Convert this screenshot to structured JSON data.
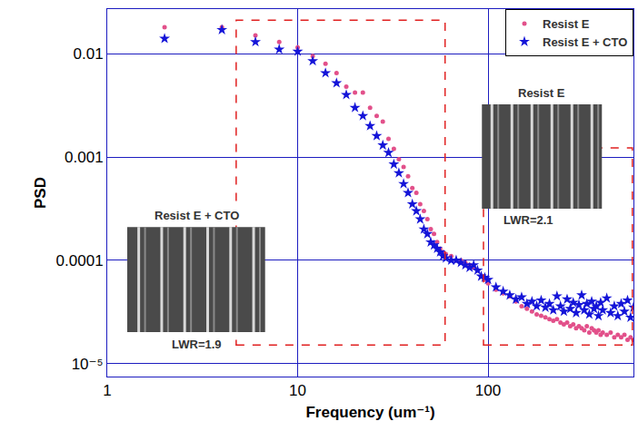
{
  "chart_data": {
    "type": "scatter",
    "x_label": "Frequency (um⁻¹)",
    "y_label": "PSD",
    "log": true,
    "grid": true,
    "legend": "upper right",
    "xlim": [
      1,
      580
    ],
    "ylim": [
      7.5e-06,
      0.027
    ],
    "xticks": [
      1,
      10,
      100
    ],
    "yticks": [
      {
        "value": 1e-05,
        "label": "10⁻⁵"
      },
      0.0001,
      0.001,
      0.01
    ],
    "x": [
      2,
      4,
      6,
      8,
      10,
      12,
      14,
      16,
      18,
      20,
      22,
      24,
      26,
      28,
      30,
      32,
      34,
      36,
      38,
      40,
      42,
      44,
      46,
      48,
      50,
      52,
      54,
      56,
      58,
      60,
      64,
      68,
      72,
      76,
      80,
      84,
      88,
      92,
      96,
      100,
      110,
      120,
      130,
      140,
      150,
      160,
      170,
      180,
      190,
      200,
      210,
      220,
      230,
      240,
      250,
      260,
      270,
      280,
      290,
      300,
      310,
      320,
      330,
      340,
      350,
      360,
      370,
      380,
      390,
      400,
      420,
      440,
      460,
      480,
      500,
      520,
      540,
      560,
      580
    ],
    "series": [
      {
        "name": "Resist E",
        "color": "#e2508a",
        "marker": "circle",
        "values": [
          0.018,
          0.018,
          0.015,
          0.013,
          0.0115,
          0.0095,
          0.008,
          0.0065,
          0.0048,
          0.0042,
          0.0042,
          0.003,
          0.0025,
          0.0022,
          0.0015,
          0.0012,
          0.00095,
          0.0008,
          0.00065,
          0.0005,
          0.00045,
          0.00035,
          0.0003,
          0.00025,
          0.0002,
          0.00018,
          0.00015,
          0.00013,
          0.00012,
          0.000115,
          0.00011,
          0.0001,
          0.0001,
          9.5e-05,
          9e-05,
          8.5e-05,
          8e-05,
          7e-05,
          6.5e-05,
          6e-05,
          5.2e-05,
          4.8e-05,
          4.5e-05,
          4e-05,
          3.6e-05,
          3.4e-05,
          3.2e-05,
          3e-05,
          2.9e-05,
          2.8e-05,
          2.7e-05,
          2.6e-05,
          2.7e-05,
          2.5e-05,
          2.4e-05,
          2.5e-05,
          2.3e-05,
          2.4e-05,
          2.2e-05,
          2.3e-05,
          2.2e-05,
          2.1e-05,
          2.3e-05,
          2e-05,
          2.2e-05,
          2.1e-05,
          2e-05,
          2.1e-05,
          1.9e-05,
          2e-05,
          1.9e-05,
          2e-05,
          1.8e-05,
          1.9e-05,
          1.8e-05,
          1.9e-05,
          1.7e-05,
          1.8e-05,
          1.7e-05
        ]
      },
      {
        "name": "Resist E + CTO",
        "color": "#1414d8",
        "marker": "star",
        "values": [
          0.014,
          0.017,
          0.013,
          0.011,
          0.0105,
          0.0085,
          0.0065,
          0.0052,
          0.004,
          0.003,
          0.0025,
          0.002,
          0.0016,
          0.0013,
          0.0011,
          0.00085,
          0.0007,
          0.00055,
          0.00045,
          0.00035,
          0.0003,
          0.00025,
          0.0002,
          0.00018,
          0.00015,
          0.00014,
          0.00013,
          0.00012,
          0.00011,
          0.000105,
          0.0001,
          0.0001,
          9.5e-05,
          9e-05,
          8.5e-05,
          9e-05,
          8e-05,
          7e-05,
          6.8e-05,
          6.5e-05,
          5.5e-05,
          5e-05,
          4.6e-05,
          4.2e-05,
          4.4e-05,
          3.8e-05,
          4e-05,
          3.6e-05,
          4.1e-05,
          3.5e-05,
          3.8e-05,
          3.3e-05,
          4.5e-05,
          3.6e-05,
          3.2e-05,
          4.2e-05,
          3.4e-05,
          3.9e-05,
          3.1e-05,
          3.7e-05,
          4.6e-05,
          3.3e-05,
          3.8e-05,
          3e-05,
          4e-05,
          3.4e-05,
          3.6e-05,
          2.9e-05,
          3.9e-05,
          3.3e-05,
          4.3e-05,
          3.1e-05,
          3.6e-05,
          2.9e-05,
          3.8e-05,
          3.2e-05,
          4.1e-05,
          2.8e-05,
          3.5e-05
        ]
      }
    ],
    "annotations": [
      {
        "text": "Resist E + CTO"
      },
      {
        "text": "LWR=1.9"
      },
      {
        "text": "Resist E"
      },
      {
        "text": "LWR=2.1"
      }
    ]
  }
}
